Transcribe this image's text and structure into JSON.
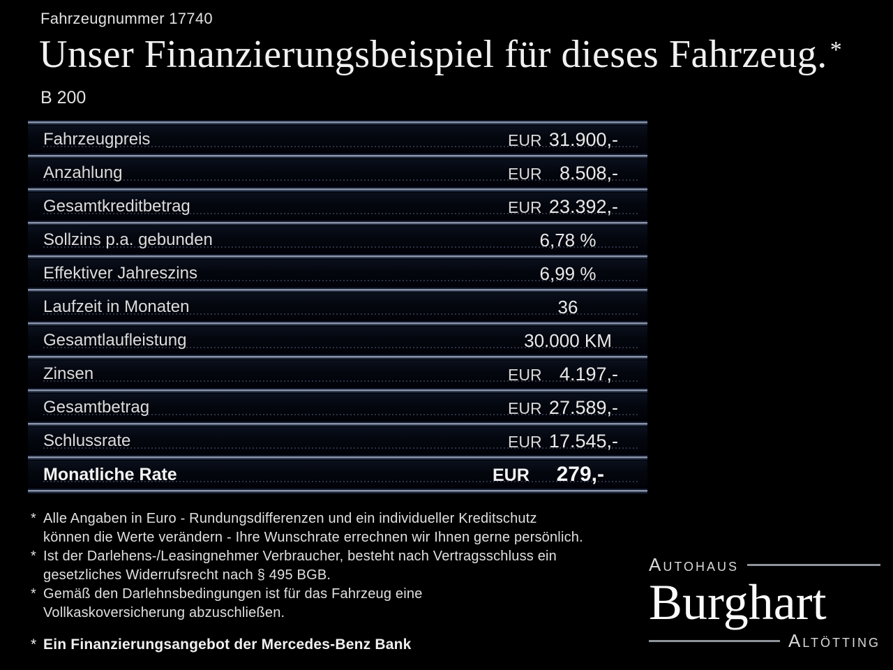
{
  "header": {
    "vehicle_number": "Fahrzeugnummer 17740",
    "title": "Unser Finanzierungsbeispiel für dieses Fahrzeug.",
    "title_footnote_marker": "*",
    "model": "B 200"
  },
  "table": {
    "rows": [
      {
        "label": "Fahrzeugpreis",
        "currency": "EUR",
        "value": "31.900,-",
        "bold": false
      },
      {
        "label": "Anzahlung",
        "currency": "EUR",
        "value": "8.508,-",
        "bold": false
      },
      {
        "label": "Gesamtkreditbetrag",
        "currency": "EUR",
        "value": "23.392,-",
        "bold": false
      },
      {
        "label": "Sollzins p.a. gebunden",
        "currency": "",
        "value": "6,78 %",
        "bold": false
      },
      {
        "label": "Effektiver Jahreszins",
        "currency": "",
        "value": "6,99 %",
        "bold": false
      },
      {
        "label": "Laufzeit in Monaten",
        "currency": "",
        "value": "36",
        "bold": false
      },
      {
        "label": "Gesamtlaufleistung",
        "currency": "",
        "value": "30.000 KM",
        "bold": false
      },
      {
        "label": "Zinsen",
        "currency": "EUR",
        "value": "4.197,-",
        "bold": false
      },
      {
        "label": "Gesamtbetrag",
        "currency": "EUR",
        "value": "27.589,-",
        "bold": false
      },
      {
        "label": "Schlussrate",
        "currency": "EUR",
        "value": "17.545,-",
        "bold": false
      },
      {
        "label": "Monatliche Rate",
        "currency": "EUR",
        "value": "279,-",
        "bold": true
      }
    ]
  },
  "footnotes": [
    {
      "marker": "*",
      "lines": [
        "Alle Angaben in Euro - Rundungsdifferenzen und ein individueller Kreditschutz",
        "können die Werte verändern - Ihre Wunschrate errechnen wir Ihnen gerne persönlich."
      ]
    },
    {
      "marker": "*",
      "lines": [
        "Ist der Darlehens-/Leasingnehmer Verbraucher, besteht nach Vertragsschluss ein",
        "gesetzliches Widerrufsrecht nach § 495 BGB."
      ]
    },
    {
      "marker": "*",
      "lines": [
        "Gemäß den Darlehnsbedingungen ist für das Fahrzeug eine",
        "Vollkaskoversicherung abzuschließen."
      ]
    }
  ],
  "financing_note_marker": "*",
  "financing_note": "Ein Finanzierungsangebot der Mercedes-Benz Bank",
  "dealer": {
    "line1": "Autohaus",
    "name": "Burghart",
    "line2": "Altötting"
  },
  "colors": {
    "background": "#000000",
    "separator_line": "#8b94a8",
    "separator_glow": "#1a2438",
    "text": "#e6e6e6",
    "logo_rule": "#8f949b"
  }
}
